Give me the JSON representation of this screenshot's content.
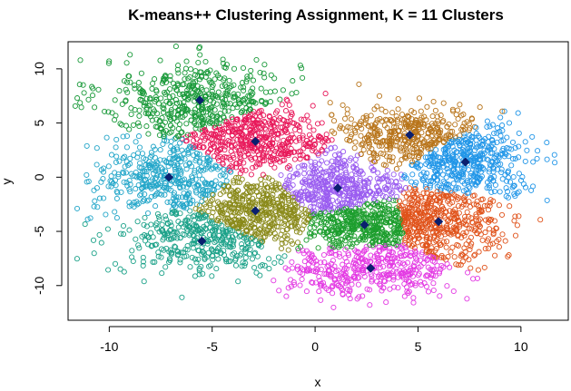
{
  "chart_data": {
    "type": "scatter",
    "title": "K-means++ Clustering Assignment, K = 11 Clusters",
    "xlabel": "x",
    "ylabel": "y",
    "xlim": [
      -12.0,
      12.3
    ],
    "ylim": [
      -13.2,
      12.5
    ],
    "x_ticks": [
      -10,
      -5,
      0,
      5,
      10
    ],
    "y_ticks": [
      10,
      5,
      0,
      -5,
      -10
    ],
    "x_tick_labels": [
      "-10",
      "-5",
      "0",
      "5",
      "10"
    ],
    "y_tick_labels": [
      "10",
      "5",
      "0",
      "-5",
      "-10"
    ],
    "grid": false,
    "legend": "none",
    "point_style": "open-circle",
    "centroid_style": "filled-diamond",
    "centroid_color": "#0a1f6e",
    "clusters": [
      {
        "color": "#1a9a3a",
        "centroid": [
          -5.6,
          7.1
        ],
        "spread": [
          2.4,
          1.9
        ],
        "n": 520
      },
      {
        "color": "#e8185a",
        "centroid": [
          -2.9,
          3.3
        ],
        "spread": [
          2.0,
          1.3
        ],
        "n": 430
      },
      {
        "color": "#23a6c9",
        "centroid": [
          -7.1,
          0.0
        ],
        "spread": [
          1.8,
          1.7
        ],
        "n": 400
      },
      {
        "color": "#8a8a1a",
        "centroid": [
          -2.9,
          -3.1
        ],
        "spread": [
          2.0,
          1.4
        ],
        "n": 430
      },
      {
        "color": "#1aa188",
        "centroid": [
          -5.5,
          -5.9
        ],
        "spread": [
          2.0,
          1.6
        ],
        "n": 360
      },
      {
        "color": "#9a5cf0",
        "centroid": [
          1.1,
          -1.0
        ],
        "spread": [
          1.6,
          1.3
        ],
        "n": 430
      },
      {
        "color": "#1d9e2e",
        "centroid": [
          2.4,
          -4.4
        ],
        "spread": [
          1.6,
          1.1
        ],
        "n": 400
      },
      {
        "color": "#e339e3",
        "centroid": [
          2.7,
          -8.4
        ],
        "spread": [
          2.2,
          1.3
        ],
        "n": 430
      },
      {
        "color": "#b8741a",
        "centroid": [
          4.6,
          3.9
        ],
        "spread": [
          2.0,
          1.3
        ],
        "n": 400
      },
      {
        "color": "#2196e8",
        "centroid": [
          7.3,
          1.4
        ],
        "spread": [
          1.7,
          1.7
        ],
        "n": 430
      },
      {
        "color": "#e0521a",
        "centroid": [
          6.0,
          -4.1
        ],
        "spread": [
          1.6,
          1.7
        ],
        "n": 430
      }
    ]
  }
}
